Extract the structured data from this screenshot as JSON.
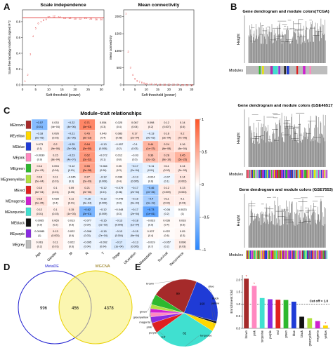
{
  "panels": {
    "a": "A",
    "b": "B",
    "c": "C",
    "d": "D",
    "e": "E"
  },
  "scale_independence": {
    "title": "Scale independence",
    "xlabel": "Soft threshold (power)",
    "ylabel": "Scale free topology model fit,signed R^2",
    "x_ticks": [
      "0",
      "5",
      "10",
      "15",
      "20",
      "25",
      "30"
    ],
    "y_ticks": [
      "0.0",
      "0.2",
      "0.4",
      "0.6",
      "0.8"
    ],
    "line_color": "#e03030",
    "cutoff": 0.85,
    "x": [
      1,
      2,
      3,
      4,
      5,
      6,
      7,
      8,
      9,
      10,
      12,
      14,
      16,
      18,
      20,
      22,
      24,
      26,
      28,
      30
    ],
    "y": [
      0.05,
      0.13,
      0.39,
      0.62,
      0.72,
      0.78,
      0.8,
      0.82,
      0.83,
      0.86,
      0.87,
      0.86,
      0.85,
      0.85,
      0.84,
      0.84,
      0.85,
      0.84,
      0.83,
      0.83
    ]
  },
  "mean_connectivity": {
    "title": "Mean connectivity",
    "xlabel": "Soft threshold (power)",
    "ylabel": "Mean connectivity",
    "x_ticks": [
      "0",
      "5",
      "10",
      "15",
      "20",
      "25",
      "30"
    ],
    "y_ticks": [
      "0",
      "500",
      "1000",
      "1500",
      "2000"
    ],
    "x": [
      1,
      2,
      3,
      4,
      5,
      6,
      7,
      8,
      9,
      10,
      12,
      14,
      16,
      18,
      20,
      22,
      24,
      26,
      28,
      30
    ],
    "y": [
      2100,
      980,
      520,
      300,
      190,
      130,
      90,
      70,
      55,
      45,
      30,
      22,
      17,
      14,
      11,
      9,
      8,
      7,
      6,
      5
    ]
  },
  "dendrograms": [
    {
      "title": "Gene dendrogram and module colors(TCGA)",
      "ylabel": "Height",
      "modules_label": "Modules"
    },
    {
      "title": "Gene dendrogram and module colors (GSE46517)",
      "ylabel": "Height",
      "modules_label": "Modules"
    },
    {
      "title": "Gene dendrogram and module colors (GSE7553)",
      "ylabel": "Height",
      "modules_label": "Modules"
    }
  ],
  "heatmap": {
    "title": "Module−trait relationships",
    "columns": [
      "Age",
      "Gender",
      "M",
      "N",
      "T",
      "Stage",
      "Ulceration",
      "Metastatic",
      "Survival",
      "Recurrence"
    ],
    "rows": [
      {
        "name": "MEbrown",
        "color": "#a52a2a",
        "r": [
          "−0.57",
          "0.033",
          "−0.22",
          "0.71",
          "0.054",
          "0.025",
          "0.087",
          "0.098",
          "0.12",
          "0.14"
        ],
        "p": [
          "(0.01)",
          "(4e−04)",
          "(4e−06)",
          "(3e−03)",
          "(0.3)",
          "(0.4)",
          "(0.04)",
          "(0.2)",
          "(0.007)",
          "(0.6)"
        ]
      },
      {
        "name": "MEyellow",
        "color": "#ffd700",
        "r": [
          "−0.18",
          "0.095",
          "−0.21",
          "0.45",
          "0.043",
          "0.083",
          "0.17",
          "−0.13",
          "0.16",
          "0.2"
        ],
        "p": [
          "(5e−05)",
          "(0.03)",
          "(1e−05)",
          "(3e−23)",
          "(0.4)",
          "(0.08)",
          "(2e−04)",
          "(5e−03)",
          "(3e−04)",
          "(7e−06)"
        ]
      },
      {
        "name": "MEblue",
        "color": "#1f3bd6",
        "r": [
          "0.073",
          "0.2",
          "−0.25",
          "0.64",
          "−0.13",
          "−0.057",
          "−0.1",
          "0.44",
          "0.24",
          "0.16"
        ],
        "p": [
          "(0.1)",
          "(9e−06)",
          "(3e−08)",
          "(2e−50)",
          "(0.006)",
          "(0.2)",
          "(0.03)",
          "(1e−23)",
          "(6e−08)",
          "(6e−04)"
        ]
      },
      {
        "name": "MEpink",
        "color": "#ff88c0",
        "r": [
          "−0.0039",
          "0.15",
          "−0.23",
          "0.62",
          "−0.072",
          "0.012",
          "−0.03",
          "0.36",
          "0.28",
          "0.45"
        ],
        "p": [
          "(0.9)",
          "(8e−04)",
          "(4e−07)",
          "(2e−52)",
          "(0.1)",
          "(0.8)",
          "(0.5)",
          "(2e−16)",
          "(6e−10)",
          "(5e−25)"
        ]
      },
      {
        "name": "MEgreen",
        "color": "#2eb82e",
        "r": [
          "0.14",
          "0.094",
          "−0.12",
          "0.55",
          "−0.084",
          "0.05",
          "−0.17",
          "−0.11",
          "0.11",
          "0.14"
        ],
        "p": [
          "(2e−03)",
          "(0.04)",
          "(0.01)",
          "(2e−38)",
          "(0.06)",
          "(0.3)",
          "(2e−04)",
          "(0.01)",
          "(0.02)",
          "(2e−03)"
        ]
      },
      {
        "name": "MEgreenyellow",
        "color": "#b0e040",
        "r": [
          "0.16",
          "0.11",
          "−0.045",
          "0.27",
          "−0.12",
          "0.036",
          "−0.13",
          "−0.024",
          "−0.07",
          "0.14"
        ],
        "p": [
          "(5e−04)",
          "(0.01)",
          "(0.3)",
          "(2e−09)",
          "(0.009)",
          "(0.4)",
          "(0.005)",
          "(0.6)",
          "(0.1)",
          "(0.002)"
        ]
      },
      {
        "name": "MEred",
        "color": "#e02020",
        "r": [
          "0.15",
          "0.1",
          "0.09",
          "0.21",
          "−0.12",
          "−0.079",
          "−0.17",
          "−0.46",
          "0.12",
          "0.13"
        ],
        "p": [
          "(8e−04)",
          "(0.01)",
          "(0.05)",
          "(2e−06)",
          "(0.01)",
          "(0.06)",
          "(2e−04)",
          "(2e−26)",
          "(0.009)",
          "(0.003)"
        ]
      },
      {
        "name": "MEmagenta",
        "color": "#d020d0",
        "r": [
          "0.18",
          "0.038",
          "0.11",
          "−0.16",
          "−0.12",
          "−0.045",
          "−0.15",
          "−0.4",
          "0.11",
          "0.1"
        ],
        "p": [
          "(9e−05)",
          "(0.4)",
          "(0.01)",
          "(4e−04)",
          "(0.009)",
          "(0.3)",
          "(9e−04)",
          "(3e−19)",
          "(0.02)",
          "(0.03)"
        ]
      },
      {
        "name": "MEturquoise",
        "color": "#40e0d0",
        "r": [
          "0.12",
          "0.1",
          "0.15",
          "−0.62",
          "−0.12",
          "−0.048",
          "−0.17",
          "−0.73",
          "−0.06",
          "0.0023"
        ],
        "p": [
          "(0.01)",
          "(0.03)",
          "(1e−03)",
          "(2e−51)",
          "(0.009)",
          "(0.3)",
          "(2e−04)",
          "(1e−81)",
          "(0.2)",
          "(1)"
        ]
      },
      {
        "name": "MEblack",
        "color": "#111111",
        "r": [
          "0.0065",
          "0.065",
          "0.013",
          "−0.077",
          "−0.15",
          "−0.13",
          "−0.18",
          "−0.033",
          "0.036",
          "0.033"
        ],
        "p": [
          "(0.9)",
          "(0.2)",
          "(0.8)",
          "(0.09)",
          "(1e−03)",
          "(0.005)",
          "(1e−04)",
          "(0.5)",
          "(0.4)",
          "(0.5)"
        ]
      },
      {
        "name": "MEpurple",
        "color": "#8a2be2",
        "r": [
          "0.00085",
          "0.13",
          "0.022",
          "−0.098",
          "−0.15",
          "−0.13",
          "−0.15",
          "0.037",
          "0.022",
          "0.05"
        ],
        "p": [
          "(1)",
          "(0.003)",
          "(0.6)",
          "(0.03)",
          "(7e−04)",
          "(0.004)",
          "(9e−04)",
          "(0.4)",
          "(0.6)",
          "(0.3)"
        ]
      },
      {
        "name": "MEgrey",
        "color": "#bebebe",
        "r": [
          "0.061",
          "0.11",
          "0.022",
          "−0.095",
          "−0.092",
          "−0.17",
          "−0.13",
          "−0.019",
          "−0.057",
          "0.096"
        ],
        "p": [
          "(0.2)",
          "(0.01)",
          "(0.6)",
          "(0.04)",
          "(0.04)",
          "(1e−04)",
          "(0.005)",
          "(0.7)",
          "(0.2)",
          "(0.03)"
        ]
      }
    ],
    "scale_ticks": [
      "1",
      "0.5",
      "0",
      "−0.5",
      "−1"
    ]
  },
  "venn": {
    "label_left": "MetaDE",
    "label_right": "WGCNA",
    "only_left": "996",
    "both": "456",
    "only_right": "4378",
    "left_color": "#2020d0",
    "right_color": "#e8d000"
  },
  "pie": {
    "slices": [
      {
        "label": "brown",
        "value": 22,
        "color": "#a52a2a"
      },
      {
        "label": "blue",
        "value": 23,
        "color": "#1f3bd6"
      },
      {
        "label": "black",
        "value": 1,
        "color": "#111111"
      },
      {
        "label": "yellow",
        "value": 4,
        "color": "#ffd700"
      },
      {
        "label": "turquoise",
        "value": 31,
        "color": "#40e0d0"
      },
      {
        "label": "red",
        "value": 5,
        "color": "#e02020"
      },
      {
        "label": "purple",
        "value": 3,
        "color": "#8a2be2"
      },
      {
        "label": "pink",
        "value": 2,
        "color": "#ff88c0"
      },
      {
        "label": "magenta",
        "value": 2,
        "color": "#d020d0"
      },
      {
        "label": "greenyellow",
        "value": 2,
        "color": "#b0e040"
      },
      {
        "label": "green",
        "value": 5,
        "color": "#2eb82e"
      }
    ],
    "numbers": {
      "brown": "99",
      "blue": "160",
      "turquoise": "82"
    }
  },
  "enrichment": {
    "ylabel": "Enrichment fold",
    "cutoff_label": "Cut off = 1.0",
    "cutoff": 1.0,
    "y_ticks": [
      "0.0",
      "0.5",
      "1.0",
      "1.5",
      "2.0"
    ],
    "ylim": [
      0,
      2.2
    ],
    "categories": [
      "brown",
      "pink",
      "turquoise",
      "purple",
      "red",
      "green",
      "blue",
      "black",
      "greenyellow",
      "magenta",
      "yellow"
    ],
    "values": [
      2.05,
      1.75,
      1.25,
      1.2,
      1.18,
      1.17,
      1.1,
      0.48,
      0.42,
      0.3,
      0.12
    ],
    "colors": [
      "#a52a2a",
      "#ff88c0",
      "#40e0d0",
      "#8a2be2",
      "#e02020",
      "#2eb82e",
      "#1f3bd6",
      "#111111",
      "#b0e040",
      "#d020d0",
      "#ffd700"
    ],
    "stars": [
      "*",
      "*",
      "",
      "",
      "",
      "",
      "",
      "",
      "",
      "",
      "*"
    ]
  }
}
